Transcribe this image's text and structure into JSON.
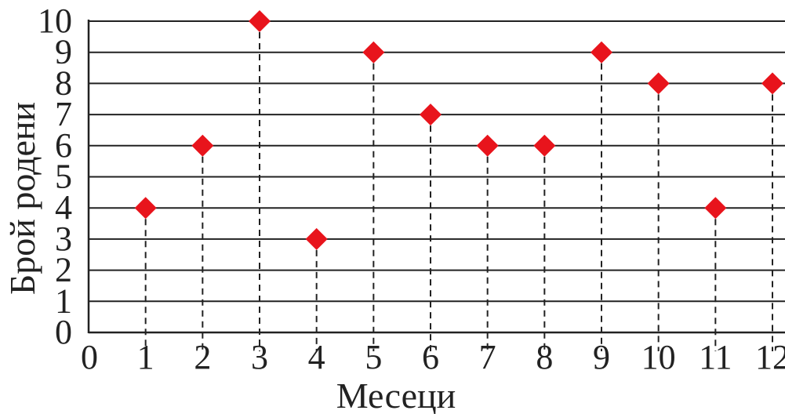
{
  "chart_data": {
    "type": "scatter",
    "title": "",
    "xlabel": "Месеци",
    "ylabel": "Брой родени",
    "xlim": [
      0,
      12
    ],
    "ylim": [
      0,
      10
    ],
    "x_ticks": [
      "0",
      "1",
      "2",
      "3",
      "4",
      "5",
      "6",
      "7",
      "8",
      "9",
      "10",
      "11",
      "12"
    ],
    "y_ticks": [
      "0",
      "1",
      "2",
      "3",
      "4",
      "5",
      "6",
      "7",
      "8",
      "9",
      "10"
    ],
    "grid": "horizontal",
    "marker": "diamond",
    "colors": {
      "marker": "#e8141c",
      "lines": "#222222"
    },
    "x": [
      1,
      2,
      3,
      4,
      5,
      6,
      7,
      8,
      9,
      10,
      11,
      12
    ],
    "y": [
      4,
      6,
      10,
      3,
      9,
      7,
      6,
      6,
      9,
      8,
      4,
      8
    ]
  }
}
